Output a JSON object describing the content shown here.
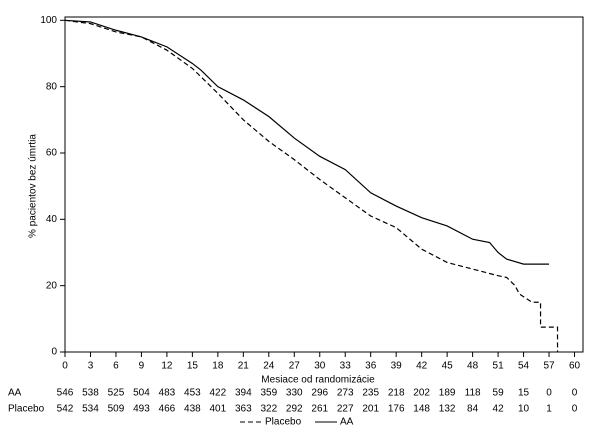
{
  "chart_data": {
    "type": "line",
    "x_label": "Mesiace od randomizácie",
    "y_label": "% pacientov bez úmrtia",
    "xlim": [
      0,
      61
    ],
    "ylim": [
      0,
      101
    ],
    "xticks": [
      0,
      3,
      6,
      9,
      12,
      15,
      18,
      21,
      24,
      27,
      30,
      33,
      36,
      39,
      42,
      45,
      48,
      51,
      54,
      57,
      60
    ],
    "yticks": [
      0,
      20,
      40,
      60,
      80,
      100
    ],
    "series": [
      {
        "name": "Placebo",
        "color": "#000000",
        "line_style": "dashed",
        "x": [
          0,
          3,
          6,
          9,
          12,
          15,
          18,
          21,
          24,
          27,
          30,
          33,
          36,
          39,
          42,
          45,
          48,
          51,
          52,
          53,
          53.5,
          55,
          56,
          56,
          58,
          58
        ],
        "values": [
          100,
          99,
          96.5,
          95,
          91,
          85.5,
          78,
          70,
          63.5,
          58,
          52,
          46.5,
          41,
          37.5,
          31,
          27,
          25,
          23,
          22.5,
          20,
          17.5,
          15,
          15,
          7.5,
          7.5,
          0
        ]
      },
      {
        "name": "AA",
        "color": "#000000",
        "line_style": "solid",
        "x": [
          0,
          3,
          6,
          9,
          12,
          15,
          16,
          18,
          21,
          24,
          27,
          30,
          33,
          36,
          39,
          42,
          45,
          48,
          50,
          51,
          52,
          54,
          57
        ],
        "values": [
          100,
          99.5,
          97,
          95,
          92,
          87,
          85,
          80,
          76,
          71,
          64.5,
          59,
          55,
          48,
          44,
          40.5,
          38,
          34,
          33,
          30,
          28,
          26.5,
          26.5
        ]
      }
    ],
    "risk_table": [
      {
        "label": "AA",
        "values": [
          546,
          538,
          525,
          504,
          483,
          453,
          422,
          394,
          359,
          330,
          296,
          273,
          235,
          218,
          202,
          189,
          118,
          59,
          15,
          0,
          0
        ]
      },
      {
        "label": "Placebo",
        "values": [
          542,
          534,
          509,
          493,
          466,
          438,
          401,
          363,
          322,
          292,
          261,
          227,
          201,
          176,
          148,
          132,
          84,
          42,
          10,
          1,
          0
        ]
      }
    ],
    "legend": "bottom"
  }
}
